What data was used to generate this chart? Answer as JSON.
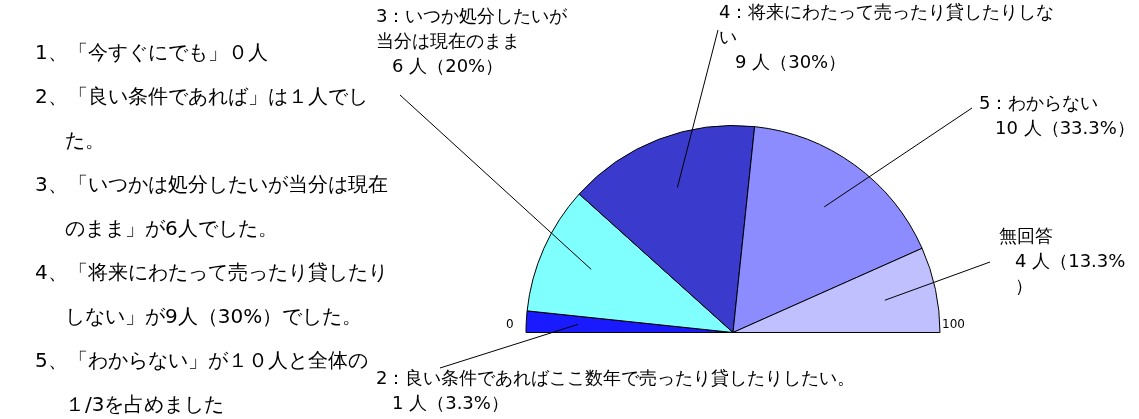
{
  "chart_data": {
    "type": "pie",
    "categories": [
      "2：良い条件であればここ数年で売ったり貸したりしたい。",
      "3：いつか処分したいが当分は現在のまま",
      "4：将来にわたって売ったり貸したりしない",
      "5：わからない",
      "無回答"
    ],
    "values": [
      1,
      6,
      9,
      10,
      4
    ],
    "value_labels": [
      "1 人（3.3%）",
      "6 人（20%）",
      "9 人（30%）",
      "10 人（33.3%）",
      "4 人（13.3%）"
    ],
    "colors": [
      "#1a1aff",
      "#80ffff",
      "#3a3acc",
      "#8c8cff",
      "#c0c0ff"
    ],
    "legend": false,
    "annotations": [
      "1、「今すぐにでも」０人",
      "2、「良い条件であれば」は１人でした。",
      "3、「いつかは処分したいが当分は現在のまま」が6人でした。",
      "4、「将来にわたって売ったり貸したりしない」が9人（30%）でした。",
      "5、「わからない」が１０人と全体の１/3を占めました",
      "0",
      "100"
    ]
  }
}
